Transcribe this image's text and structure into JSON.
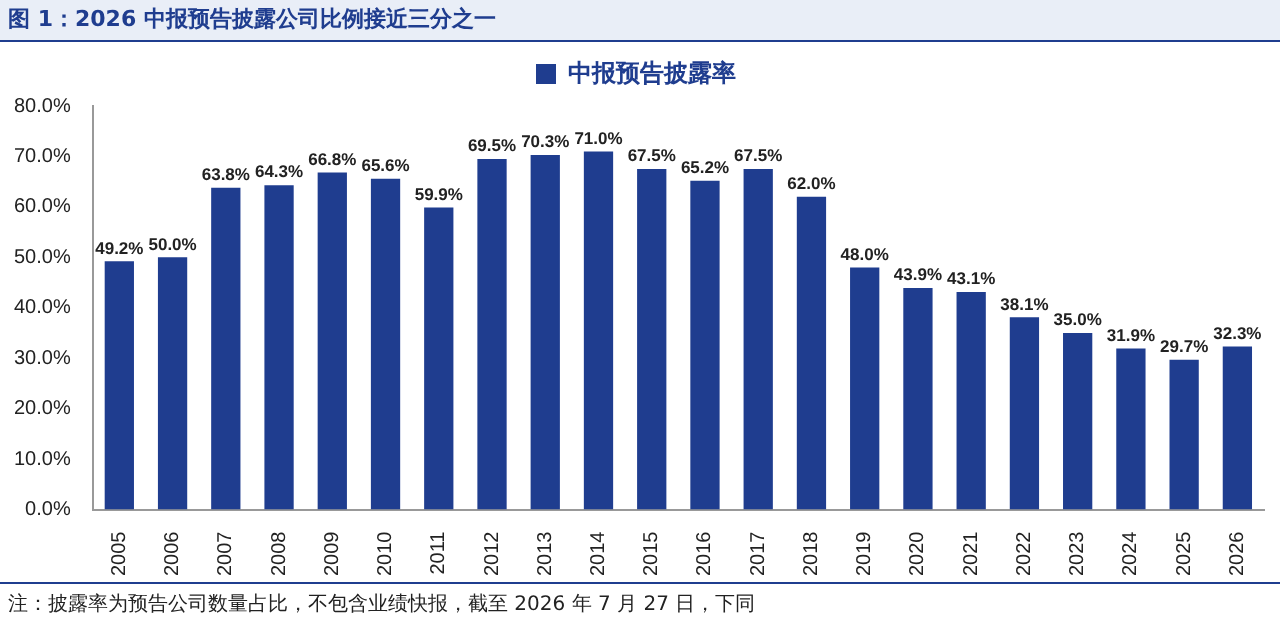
{
  "chart_data": {
    "type": "bar",
    "title": "图 1：2026 中报预告披露公司比例接近三分之一",
    "categories": [
      "2005",
      "2006",
      "2007",
      "2008",
      "2009",
      "2010",
      "2011",
      "2012",
      "2013",
      "2014",
      "2015",
      "2016",
      "2017",
      "2018",
      "2019",
      "2020",
      "2021",
      "2022",
      "2023",
      "2024",
      "2025",
      "2026"
    ],
    "series": [
      {
        "name": "中报预告披露率",
        "color": "#1f3d8f",
        "values": [
          49.2,
          50.0,
          63.8,
          64.3,
          66.8,
          65.6,
          59.9,
          69.5,
          70.3,
          71.0,
          67.5,
          65.2,
          67.5,
          62.0,
          48.0,
          43.9,
          43.1,
          38.1,
          35.0,
          31.9,
          29.7,
          32.3
        ]
      }
    ],
    "value_labels": [
      "49.2%",
      "50.0%",
      "63.8%",
      "64.3%",
      "66.8%",
      "65.6%",
      "59.9%",
      "69.5%",
      "70.3%",
      "71.0%",
      "67.5%",
      "65.2%",
      "67.5%",
      "62.0%",
      "48.0%",
      "43.9%",
      "43.1%",
      "38.1%",
      "35.0%",
      "31.9%",
      "29.7%",
      "32.3%"
    ],
    "ylim": [
      0,
      80
    ],
    "yticks": [
      {
        "value": 0,
        "label": "0.0%"
      },
      {
        "value": 10,
        "label": "10.0%"
      },
      {
        "value": 20,
        "label": "20.0%"
      },
      {
        "value": 30,
        "label": "30.0%"
      },
      {
        "value": 40,
        "label": "40.0%"
      },
      {
        "value": 50,
        "label": "50.0%"
      },
      {
        "value": 60,
        "label": "60.0%"
      },
      {
        "value": 70,
        "label": "70.0%"
      },
      {
        "value": 80,
        "label": "80.0%"
      }
    ],
    "grid": false,
    "legend": "top",
    "annotations": [
      "注：披露率为预告公司数量占比，不包含业绩快报，截至 2026 年 7 月 27 日，下同"
    ]
  }
}
